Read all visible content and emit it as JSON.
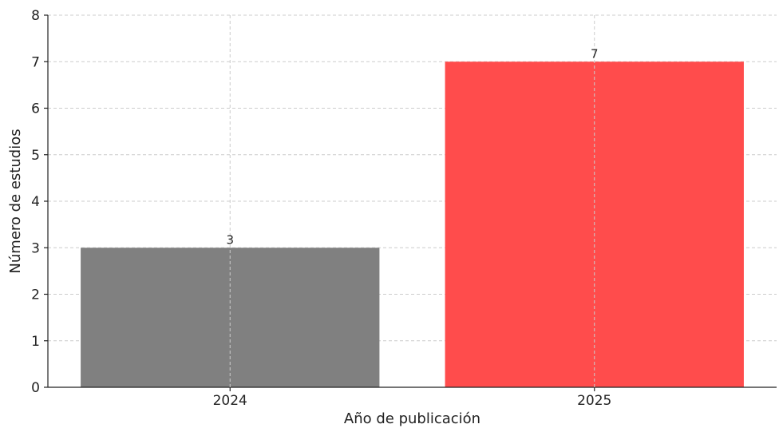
{
  "chart_data": {
    "type": "bar",
    "categories": [
      "2024",
      "2025"
    ],
    "values": [
      3,
      7
    ],
    "bar_colors": [
      "#808080",
      "#ff4c4c"
    ],
    "data_labels": [
      "3",
      "7"
    ],
    "xlabel": "Año de publicación",
    "ylabel": "Número de estudios",
    "ylim": [
      0,
      8
    ],
    "yticks": [
      "0",
      "1",
      "2",
      "3",
      "4",
      "5",
      "6",
      "7",
      "8"
    ],
    "grid": true,
    "grid_style": "dashed",
    "grid_color": "#cccccc"
  }
}
